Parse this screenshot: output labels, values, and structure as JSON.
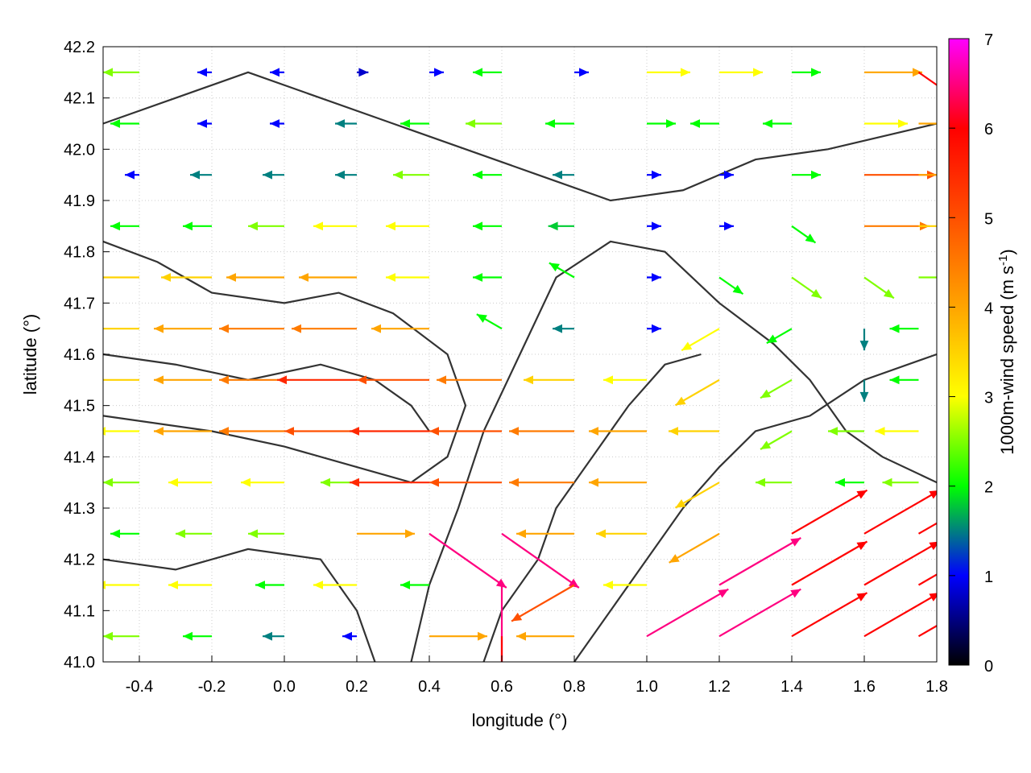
{
  "chart_data": {
    "type": "vector-field",
    "xlabel": "longitude (°)",
    "ylabel": "latitude (°)",
    "xlim": [
      -0.5,
      1.8
    ],
    "ylim": [
      41.0,
      42.2
    ],
    "xticks": [
      "-0.4",
      "-0.2",
      "0.0",
      "0.2",
      "0.4",
      "0.6",
      "0.8",
      "1.0",
      "1.2",
      "1.4",
      "1.6",
      "1.8"
    ],
    "yticks": [
      "41.0",
      "41.1",
      "41.2",
      "41.3",
      "41.4",
      "41.5",
      "41.6",
      "41.7",
      "41.8",
      "41.9",
      "42.0",
      "42.1",
      "42.2"
    ],
    "grid": true,
    "colorbar": {
      "label": "1000m-wind speed (m s",
      "label_sup": "-1",
      "label_end": ")",
      "range": [
        0,
        7
      ],
      "ticks": [
        "0",
        "1",
        "2",
        "3",
        "4",
        "5",
        "6",
        "7"
      ],
      "stops": [
        "#000000",
        "#0000ff",
        "#00ff00",
        "#ffff00",
        "#ffa500",
        "#ff5000",
        "#ff0000",
        "#ff00ff"
      ]
    },
    "contour_color": "#333333",
    "vector_lons": [
      -0.4,
      -0.2,
      0.0,
      0.2,
      0.4,
      0.6,
      0.8,
      1.0,
      1.2,
      1.4,
      1.6,
      1.75
    ],
    "vector_lats": [
      42.15,
      42.05,
      41.95,
      41.85,
      41.75,
      41.65,
      41.55,
      41.45,
      41.35,
      41.25,
      41.15,
      41.05
    ],
    "speed_m_s": [
      [
        2.5,
        1,
        1,
        0.8,
        1,
        2,
        1,
        3,
        3,
        2,
        4,
        6
      ],
      [
        2,
        1,
        1,
        1.5,
        2,
        2.5,
        2,
        2,
        2,
        2,
        3,
        4
      ],
      [
        1,
        1.5,
        1.5,
        1.5,
        2.5,
        2,
        1.5,
        1,
        1,
        2,
        5,
        4
      ],
      [
        2,
        2,
        2.5,
        3,
        3,
        2,
        1.8,
        1,
        1,
        2,
        4.5,
        3.5
      ],
      [
        3.5,
        3.5,
        4,
        4,
        3,
        2,
        2,
        1,
        2,
        2.5,
        2.5,
        2.5
      ],
      [
        3.5,
        4,
        4.5,
        4.5,
        4,
        2,
        1.5,
        1,
        3,
        2,
        1.5,
        2
      ],
      [
        3.5,
        4,
        4.5,
        5.5,
        5,
        4.5,
        3.5,
        3,
        3.5,
        2.5,
        1.5,
        2
      ],
      [
        3,
        4,
        4.5,
        5,
        5.5,
        5,
        4.5,
        4,
        3.5,
        2.5,
        2.5,
        3
      ],
      [
        2.5,
        3,
        3,
        2.5,
        5.5,
        5,
        4.5,
        4,
        3.5,
        2.5,
        2,
        2.5
      ],
      [
        2,
        2.5,
        2.5,
        4,
        6.5,
        6.5,
        4,
        3.5,
        4,
        6,
        6,
        6
      ],
      [
        3,
        3,
        2,
        3,
        2,
        6.5,
        5,
        3,
        6.5,
        6,
        6,
        6
      ],
      [
        2.5,
        2,
        1.5,
        1,
        4,
        6,
        4,
        6.5,
        6.5,
        6,
        6,
        6
      ]
    ],
    "direction_deg_ccw_from_east": [
      [
        180,
        180,
        180,
        0,
        0,
        180,
        0,
        0,
        0,
        0,
        0,
        -35
      ],
      [
        180,
        180,
        180,
        180,
        180,
        180,
        180,
        0,
        180,
        180,
        0,
        0
      ],
      [
        180,
        180,
        180,
        180,
        180,
        180,
        180,
        0,
        0,
        0,
        0,
        0
      ],
      [
        180,
        180,
        180,
        180,
        180,
        180,
        180,
        0,
        0,
        -35,
        0,
        0
      ],
      [
        180,
        180,
        180,
        180,
        180,
        180,
        150,
        0,
        -35,
        -35,
        -35,
        0
      ],
      [
        180,
        180,
        180,
        180,
        180,
        150,
        180,
        0,
        210,
        210,
        270,
        180
      ],
      [
        180,
        180,
        180,
        180,
        180,
        180,
        180,
        180,
        210,
        210,
        270,
        180
      ],
      [
        180,
        180,
        180,
        180,
        180,
        180,
        180,
        180,
        180,
        210,
        180,
        180
      ],
      [
        180,
        180,
        180,
        180,
        180,
        180,
        180,
        180,
        210,
        180,
        180,
        180
      ],
      [
        180,
        180,
        180,
        0,
        -35,
        -35,
        180,
        180,
        210,
        30,
        30,
        30
      ],
      [
        180,
        180,
        180,
        180,
        180,
        270,
        210,
        180,
        30,
        30,
        30,
        30
      ],
      [
        180,
        180,
        180,
        180,
        0,
        270,
        180,
        30,
        30,
        30,
        30,
        30
      ]
    ],
    "contours": [
      [
        [
          -0.5,
          41.82
        ],
        [
          -0.35,
          41.78
        ],
        [
          -0.2,
          41.72
        ],
        [
          0.0,
          41.7
        ],
        [
          0.15,
          41.72
        ],
        [
          0.3,
          41.68
        ],
        [
          0.45,
          41.6
        ],
        [
          0.5,
          41.5
        ],
        [
          0.45,
          41.4
        ],
        [
          0.35,
          41.35
        ],
        [
          0.2,
          41.38
        ],
        [
          0.0,
          41.42
        ],
        [
          -0.2,
          41.45
        ],
        [
          -0.5,
          41.48
        ]
      ],
      [
        [
          0.35,
          41.0
        ],
        [
          0.4,
          41.15
        ],
        [
          0.48,
          41.3
        ],
        [
          0.55,
          41.45
        ],
        [
          0.65,
          41.6
        ],
        [
          0.75,
          41.75
        ],
        [
          0.9,
          41.82
        ],
        [
          1.05,
          41.8
        ],
        [
          1.2,
          41.7
        ],
        [
          1.35,
          41.62
        ],
        [
          1.45,
          41.55
        ],
        [
          1.55,
          41.45
        ],
        [
          1.65,
          41.4
        ],
        [
          1.8,
          41.35
        ]
      ],
      [
        [
          0.8,
          41.0
        ],
        [
          0.9,
          41.1
        ],
        [
          1.0,
          41.2
        ],
        [
          1.1,
          41.3
        ],
        [
          1.2,
          41.38
        ],
        [
          1.3,
          41.45
        ],
        [
          1.45,
          41.48
        ],
        [
          1.6,
          41.55
        ],
        [
          1.8,
          41.6
        ]
      ],
      [
        [
          -0.5,
          42.05
        ],
        [
          -0.3,
          42.1
        ],
        [
          -0.1,
          42.15
        ],
        [
          0.1,
          42.1
        ],
        [
          0.3,
          42.05
        ],
        [
          0.5,
          42.0
        ],
        [
          0.7,
          41.95
        ],
        [
          0.9,
          41.9
        ],
        [
          1.1,
          41.92
        ],
        [
          1.3,
          41.98
        ],
        [
          1.5,
          42.0
        ],
        [
          1.8,
          42.05
        ]
      ],
      [
        [
          -0.5,
          41.2
        ],
        [
          -0.3,
          41.18
        ],
        [
          -0.1,
          41.22
        ],
        [
          0.1,
          41.2
        ],
        [
          0.2,
          41.1
        ],
        [
          0.25,
          41.0
        ]
      ],
      [
        [
          0.55,
          41.0
        ],
        [
          0.6,
          41.1
        ],
        [
          0.7,
          41.2
        ],
        [
          0.75,
          41.3
        ],
        [
          0.85,
          41.4
        ],
        [
          0.95,
          41.5
        ],
        [
          1.05,
          41.58
        ],
        [
          1.15,
          41.6
        ]
      ],
      [
        [
          -0.5,
          41.6
        ],
        [
          -0.3,
          41.58
        ],
        [
          -0.1,
          41.55
        ],
        [
          0.1,
          41.58
        ],
        [
          0.25,
          41.55
        ],
        [
          0.35,
          41.5
        ],
        [
          0.4,
          41.45
        ]
      ]
    ]
  }
}
